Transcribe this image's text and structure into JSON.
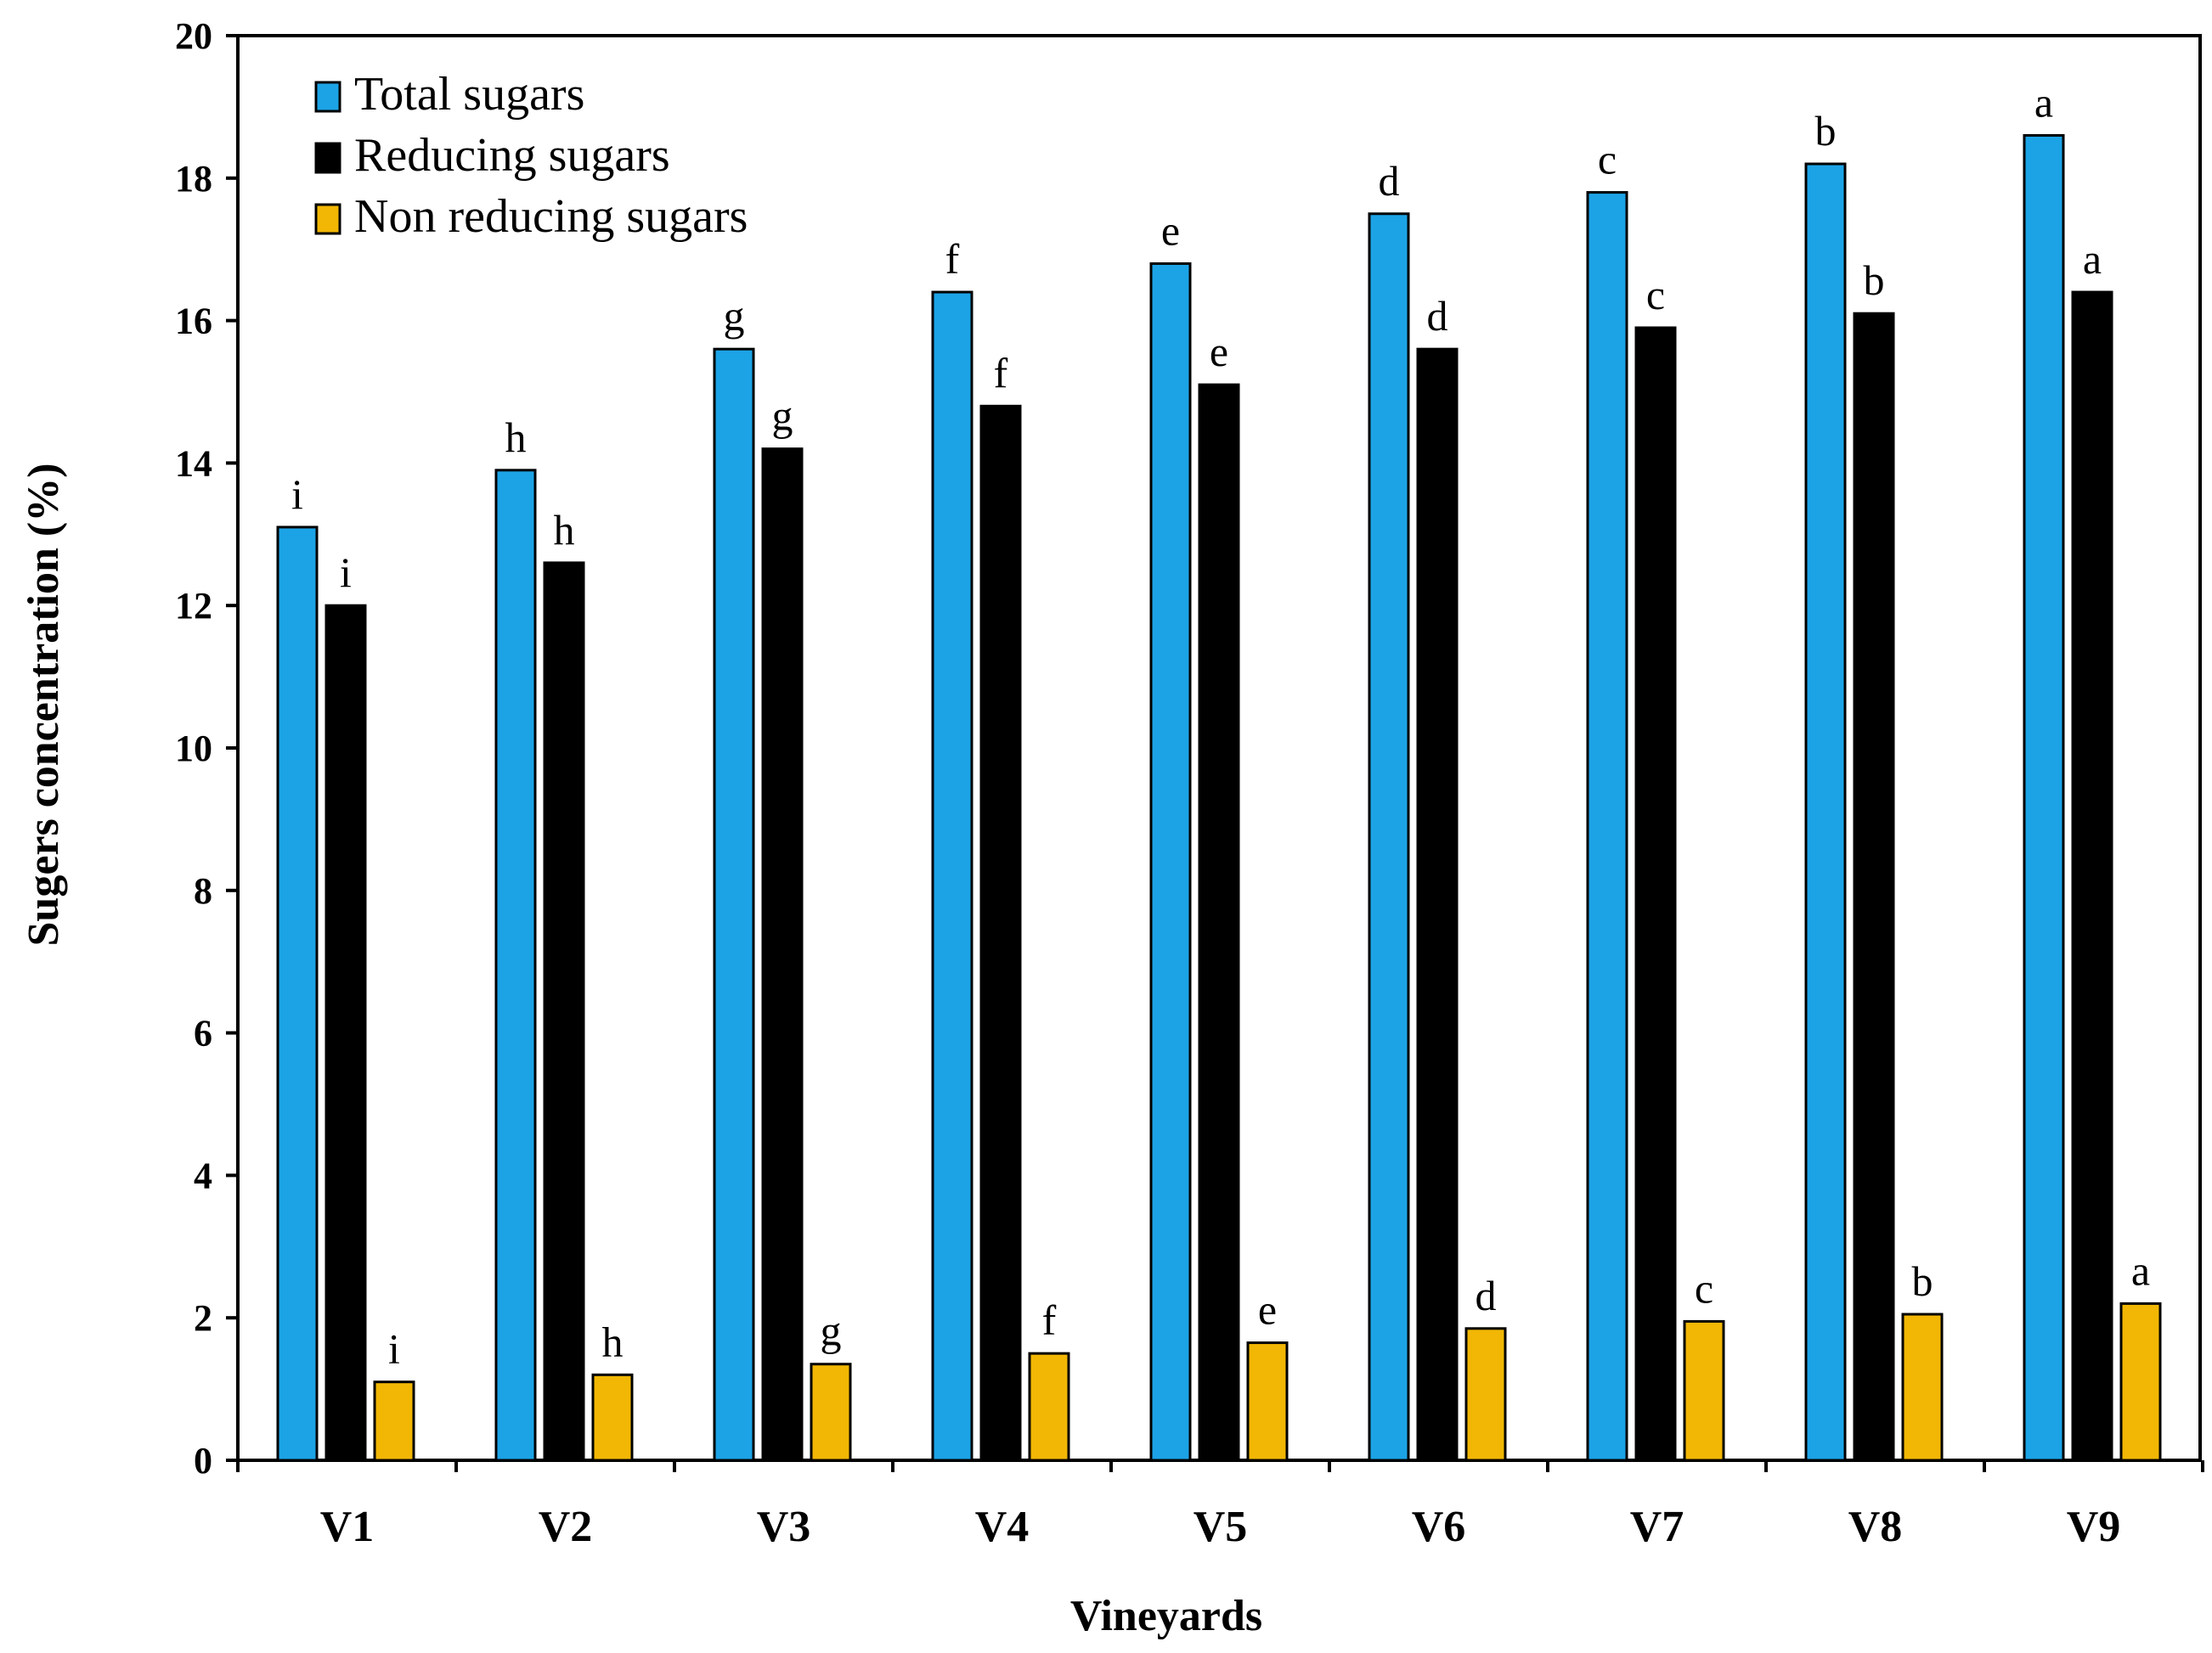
{
  "chart_data": {
    "type": "bar",
    "xlabel": "Vineyards",
    "ylabel": "Sugers concentration (%)",
    "ylim": [
      0,
      20
    ],
    "yticks": [
      0,
      2,
      4,
      6,
      8,
      10,
      12,
      14,
      16,
      18,
      20
    ],
    "grid": false,
    "legend_position": "top-left",
    "categories": [
      "V1",
      "V2",
      "V3",
      "V4",
      "V5",
      "V6",
      "V7",
      "V8",
      "V9"
    ],
    "series": [
      {
        "name": "Total sugars",
        "color": "#1CA3E6",
        "values": [
          13.1,
          13.9,
          15.6,
          16.4,
          16.8,
          17.5,
          17.8,
          18.2,
          18.6
        ],
        "labels": [
          "i",
          "h",
          "g",
          "f",
          "e",
          "d",
          "c",
          "b",
          "a"
        ]
      },
      {
        "name": "Reducing sugars",
        "color": "#000000",
        "values": [
          12.0,
          12.6,
          14.2,
          14.8,
          15.1,
          15.6,
          15.9,
          16.1,
          16.4
        ],
        "labels": [
          "i",
          "h",
          "g",
          "f",
          "e",
          "d",
          "c",
          "b",
          "a"
        ]
      },
      {
        "name": "Non reducing sugars",
        "color": "#F2B705",
        "values": [
          1.1,
          1.2,
          1.35,
          1.5,
          1.65,
          1.85,
          1.95,
          2.05,
          2.2
        ],
        "labels": [
          "i",
          "h",
          "g",
          "f",
          "e",
          "d",
          "c",
          "b",
          "a"
        ]
      }
    ]
  }
}
